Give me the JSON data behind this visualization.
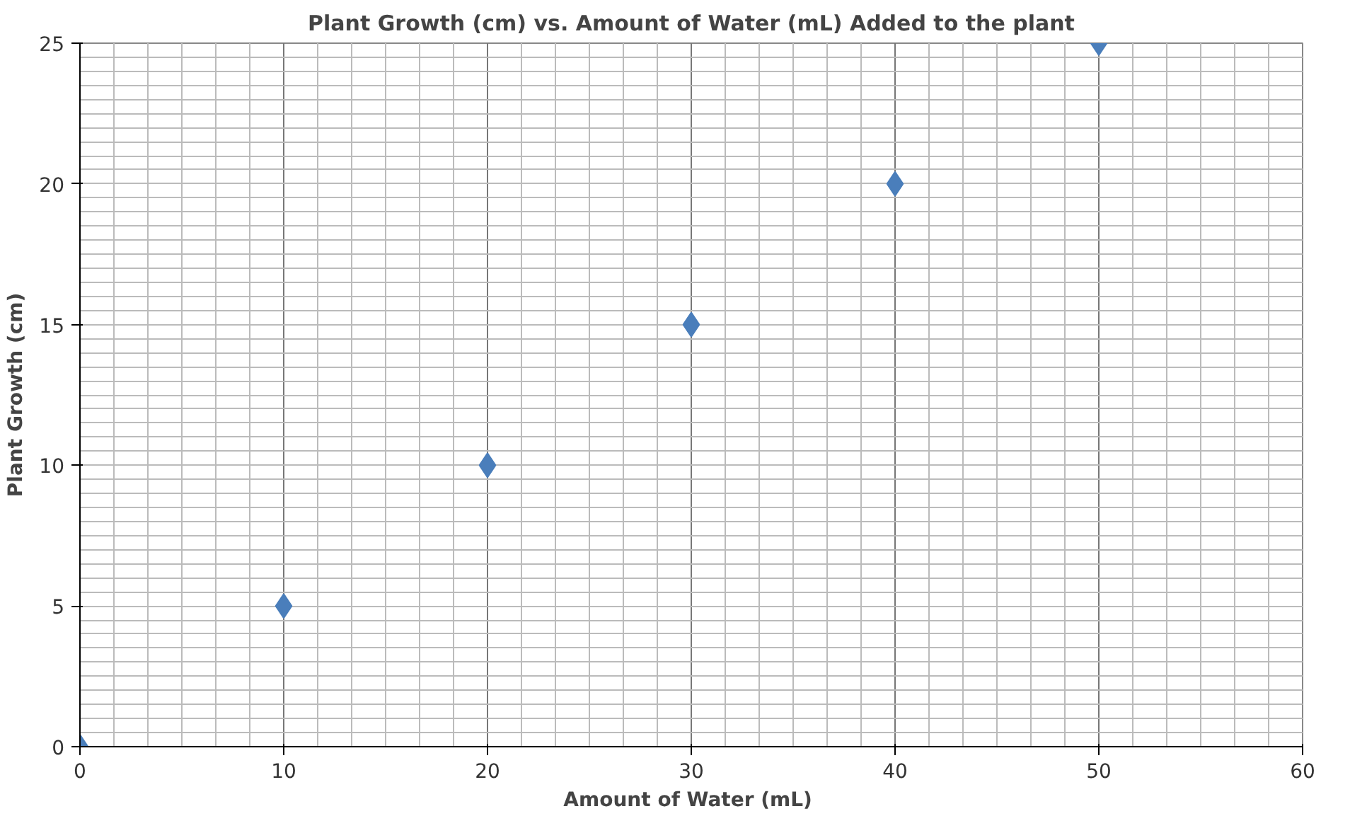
{
  "chart_data": {
    "type": "scatter",
    "title": "Plant Growth (cm) vs. Amount of Water (mL) Added to the plant",
    "xlabel": "Amount of Water  (mL)",
    "ylabel": "Plant Growth (cm)",
    "x": [
      0,
      10,
      20,
      30,
      40,
      50
    ],
    "series": [
      {
        "color": "#4a7ebb",
        "values": [
          0,
          5,
          10,
          15,
          20,
          25
        ]
      }
    ],
    "xlim": [
      0,
      60
    ],
    "xticks": [
      0,
      10,
      20,
      30,
      40,
      50,
      60
    ],
    "ylim": [
      0,
      25
    ],
    "yticks": [
      0,
      5,
      10,
      15,
      20,
      25
    ],
    "grid": true,
    "marker": "diamond"
  }
}
